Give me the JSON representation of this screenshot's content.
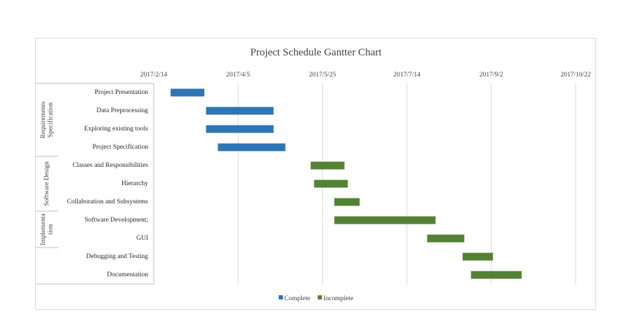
{
  "chart_data": {
    "type": "bar",
    "orientation": "horizontal-gantt",
    "title": "Project Schedule Gantter Chart",
    "x_ticks": [
      {
        "date": "2017-02-14",
        "label": "2017/2/14"
      },
      {
        "date": "2017-04-05",
        "label": "2017/4/5"
      },
      {
        "date": "2017-05-25",
        "label": "2017/5/25"
      },
      {
        "date": "2017-07-14",
        "label": "2017/7/14"
      },
      {
        "date": "2017-09-02",
        "label": "2017/9/2"
      },
      {
        "date": "2017-10-22",
        "label": "2017/10/22"
      }
    ],
    "xlim": [
      "2017-02-14",
      "2017-10-22"
    ],
    "grid": "vertical",
    "legend": "bottom-center",
    "series": [
      {
        "name": "Complete",
        "color": "#2e75b6"
      },
      {
        "name": "Incomplete",
        "color": "#548235"
      }
    ],
    "groups": [
      {
        "label": "Requirements Specification",
        "label_lines": [
          "Requirements",
          "Specification"
        ],
        "tasks": [
          {
            "name": "Project Presentation",
            "start": "2017-02-24",
            "end": "2017-03-16",
            "series": "Complete"
          },
          {
            "name": "Data Preprocessing",
            "start": "2017-03-17",
            "end": "2017-04-26",
            "series": "Complete"
          },
          {
            "name": "Exploring existing tools",
            "start": "2017-03-17",
            "end": "2017-04-26",
            "series": "Complete"
          },
          {
            "name": "Project Specification",
            "start": "2017-03-24",
            "end": "2017-05-03",
            "series": "Complete"
          }
        ]
      },
      {
        "label": "Software Design",
        "label_lines": [
          "Software Design"
        ],
        "tasks": [
          {
            "name": "Classes and Responsibilities",
            "start": "2017-05-18",
            "end": "2017-06-07",
            "series": "Incomplete"
          },
          {
            "name": "Hierarchy",
            "start": "2017-05-20",
            "end": "2017-06-09",
            "series": "Incomplete"
          },
          {
            "name": "Collaboration and Subsystems",
            "start": "2017-06-01",
            "end": "2017-06-16",
            "series": "Incomplete"
          }
        ]
      },
      {
        "label": "Implementation",
        "label_lines": [
          "Implementa",
          "tion"
        ],
        "tasks": [
          {
            "name": "Software Development;",
            "start": "2017-06-01",
            "end": "2017-07-31",
            "series": "Incomplete"
          },
          {
            "name": "GUI",
            "start": "2017-07-26",
            "end": "2017-08-17",
            "series": "Incomplete"
          }
        ]
      },
      {
        "label": "",
        "label_lines": [],
        "tasks": [
          {
            "name": "Debugging and Testing",
            "start": "2017-08-16",
            "end": "2017-09-03",
            "series": "Incomplete"
          },
          {
            "name": "Documentation",
            "start": "2017-08-21",
            "end": "2017-09-20",
            "series": "Incomplete"
          }
        ]
      }
    ]
  }
}
